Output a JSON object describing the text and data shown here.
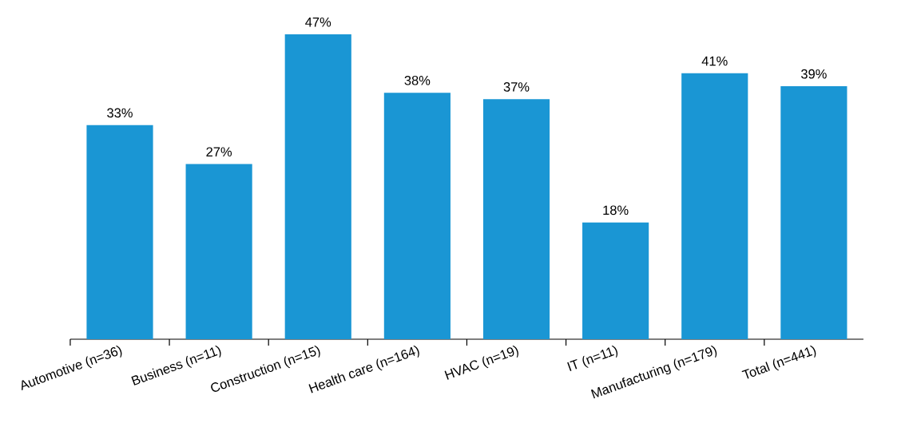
{
  "chart_data": {
    "type": "bar",
    "categories": [
      "Automotive (n=36)",
      "Business (n=11)",
      "Construction (n=15)",
      "Health care (n=164)",
      "HVAC (n=19)",
      "IT (n=11)",
      "Manufacturing (n=179)",
      "Total (n=441)"
    ],
    "values": [
      33,
      27,
      47,
      38,
      37,
      18,
      41,
      39
    ],
    "value_labels": [
      "33%",
      "27%",
      "47%",
      "38%",
      "37%",
      "18%",
      "41%",
      "39%"
    ],
    "color": "#1a96d4"
  }
}
